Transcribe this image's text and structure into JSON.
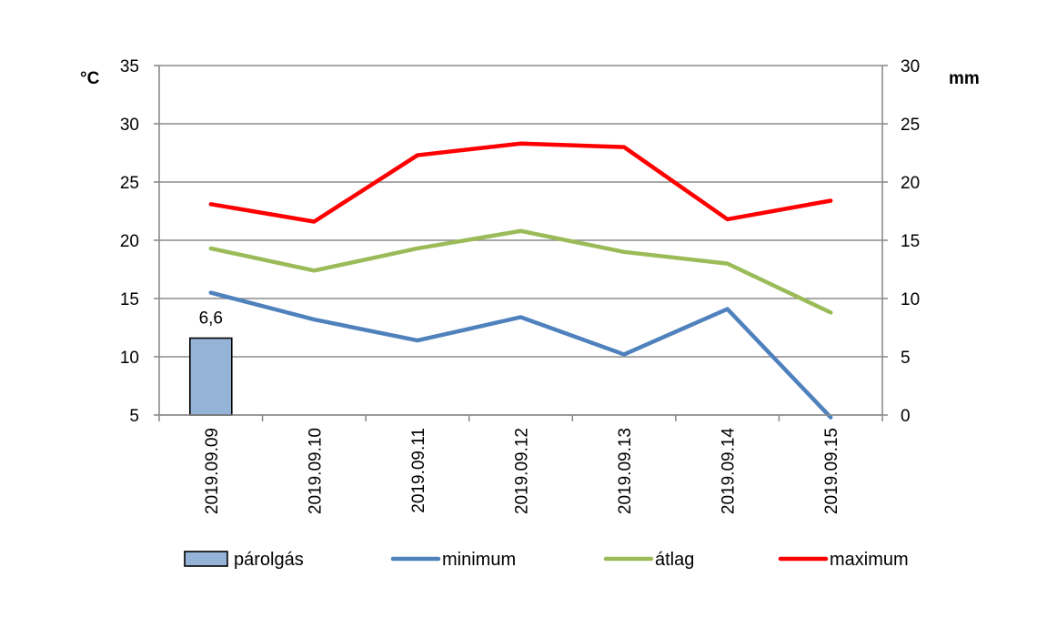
{
  "chart_data": {
    "type": "bar+line",
    "title": "",
    "categories": [
      "2019.09.09",
      "2019.09.10",
      "2019.09.11",
      "2019.09.12",
      "2019.09.13",
      "2019.09.14",
      "2019.09.15"
    ],
    "y_left": {
      "unit": "°C",
      "ylim": [
        5,
        35
      ],
      "ticks": [
        5,
        10,
        15,
        20,
        25,
        30,
        35
      ]
    },
    "y_right": {
      "unit": "mm",
      "ylim": [
        0,
        30
      ],
      "ticks": [
        0,
        5,
        10,
        15,
        20,
        25,
        30
      ]
    },
    "grid": true,
    "legend_position": "bottom",
    "series": [
      {
        "name": "párolgás",
        "type": "bar",
        "axis": "right",
        "color": "#95b3d7",
        "values": [
          6.6,
          null,
          null,
          null,
          null,
          null,
          null
        ],
        "data_labels": [
          "6,6",
          "",
          "",
          "",
          "",
          "",
          ""
        ]
      },
      {
        "name": "minimum",
        "type": "line",
        "axis": "left",
        "color": "#4f81bd",
        "values": [
          15.5,
          13.2,
          11.4,
          13.4,
          10.2,
          14.1,
          4.8
        ]
      },
      {
        "name": "átlag",
        "type": "line",
        "axis": "left",
        "color": "#9bbb59",
        "values": [
          19.3,
          17.4,
          19.3,
          20.8,
          19.0,
          18.0,
          13.8
        ]
      },
      {
        "name": "maximum",
        "type": "line",
        "axis": "left",
        "color": "#ff0000",
        "values": [
          23.1,
          21.6,
          27.3,
          28.3,
          28.0,
          21.8,
          23.4
        ]
      }
    ]
  }
}
